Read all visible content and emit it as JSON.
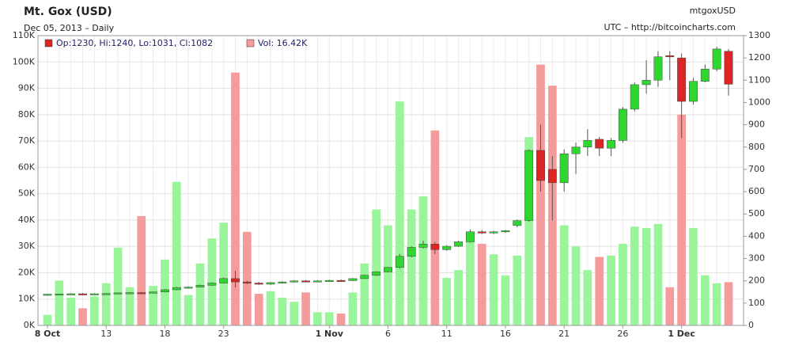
{
  "chart_data": {
    "type": "candlestick",
    "title": "Mt. Gox (USD)",
    "subtitle": "Dec 05, 2013 – Daily",
    "symbol": "mtgoxUSD",
    "source": "UTC – http://bitcoincharts.com",
    "legend": [
      "Op:1230, Hi:1240, Lo:1031, Cl:1082",
      "Vol: 16.42K"
    ],
    "categories": [
      "8 Oct",
      null,
      null,
      null,
      null,
      "13",
      null,
      null,
      null,
      null,
      "18",
      null,
      null,
      null,
      null,
      "23",
      null,
      null,
      null,
      null,
      null,
      null,
      null,
      null,
      "1 Nov",
      null,
      null,
      null,
      null,
      "6",
      null,
      null,
      null,
      null,
      "11",
      null,
      null,
      null,
      null,
      "16",
      null,
      null,
      null,
      null,
      "21",
      null,
      null,
      null,
      null,
      "26",
      null,
      null,
      null,
      null,
      "1 Dec",
      null,
      null,
      null,
      null
    ],
    "open": [
      138,
      140,
      141,
      142,
      141,
      142,
      143,
      146,
      147,
      146,
      150,
      160,
      170,
      172,
      180,
      190,
      210,
      195,
      190,
      185,
      192,
      195,
      200,
      198,
      200,
      202,
      201,
      210,
      225,
      240,
      260,
      310,
      350,
      365,
      340,
      355,
      375,
      420,
      415,
      420,
      448,
      470,
      785,
      700,
      640,
      770,
      800,
      835,
      795,
      830,
      970,
      1080,
      1100,
      1210,
      1200,
      1005,
      1095,
      1150,
      1230
    ],
    "high": [
      142,
      143,
      144,
      145,
      144,
      145,
      148,
      149,
      150,
      152,
      163,
      173,
      175,
      183,
      193,
      215,
      245,
      200,
      195,
      194,
      198,
      203,
      204,
      203,
      205,
      206,
      212,
      228,
      243,
      262,
      320,
      355,
      380,
      375,
      360,
      380,
      430,
      428,
      424,
      428,
      475,
      790,
      900,
      760,
      790,
      820,
      880,
      845,
      840,
      980,
      1090,
      1190,
      1230,
      1230,
      1220,
      1110,
      1170,
      1250,
      1240
    ],
    "low": [
      136,
      138,
      139,
      139,
      139,
      140,
      141,
      144,
      143,
      144,
      148,
      158,
      167,
      170,
      178,
      188,
      170,
      185,
      182,
      182,
      188,
      193,
      195,
      195,
      197,
      198,
      199,
      208,
      222,
      238,
      255,
      305,
      345,
      320,
      335,
      352,
      372,
      410,
      410,
      415,
      440,
      465,
      600,
      470,
      600,
      680,
      760,
      760,
      760,
      820,
      960,
      1040,
      1070,
      1100,
      840,
      990,
      1090,
      1140,
      1031
    ],
    "close": [
      140,
      141,
      142,
      141,
      142,
      143,
      146,
      147,
      146,
      150,
      160,
      170,
      172,
      180,
      190,
      210,
      195,
      190,
      185,
      192,
      195,
      200,
      198,
      200,
      202,
      201,
      210,
      225,
      240,
      260,
      310,
      350,
      365,
      340,
      355,
      375,
      420,
      415,
      420,
      425,
      470,
      785,
      650,
      640,
      770,
      800,
      830,
      795,
      830,
      970,
      1080,
      1100,
      1205,
      1205,
      1005,
      1095,
      1150,
      1240,
      1082
    ],
    "volume": [
      4000,
      17000,
      10500,
      6500,
      11000,
      16000,
      29500,
      14500,
      41500,
      15000,
      25000,
      54500,
      11500,
      23500,
      33000,
      39000,
      96000,
      35500,
      12000,
      13000,
      10500,
      9000,
      12500,
      5000,
      5000,
      4500,
      12500,
      23500,
      44000,
      38000,
      85000,
      44000,
      49000,
      74000,
      18000,
      21000,
      35500,
      31000,
      27000,
      19000,
      26500,
      71500,
      99000,
      91000,
      38000,
      30000,
      21000,
      26000,
      26500,
      31000,
      37500,
      37000,
      38500,
      14500,
      80000,
      37000,
      19000,
      16000,
      16420
    ],
    "up_color": "#2fd62f",
    "down_color": "#dd2525",
    "volume_up_color": "#9af59a",
    "volume_down_color": "#f49b9b",
    "ylim": [
      0,
      110000
    ],
    "yticks": [
      {
        "value": 0,
        "label": "0K"
      },
      {
        "value": 10000,
        "label": "10K"
      },
      {
        "value": 20000,
        "label": "20K"
      },
      {
        "value": 30000,
        "label": "30K"
      },
      {
        "value": 40000,
        "label": "40K"
      },
      {
        "value": 50000,
        "label": "50K"
      },
      {
        "value": 60000,
        "label": "60K"
      },
      {
        "value": 70000,
        "label": "70K"
      },
      {
        "value": 80000,
        "label": "80K"
      },
      {
        "value": 90000,
        "label": "90K"
      },
      {
        "value": 100000,
        "label": "100K"
      },
      {
        "value": 110000,
        "label": "110K"
      }
    ],
    "y2lim": [
      0,
      1300
    ],
    "y2ticks": [
      0,
      100,
      200,
      300,
      400,
      500,
      600,
      700,
      800,
      900,
      1000,
      1100,
      1200,
      1300
    ],
    "grid": true
  }
}
